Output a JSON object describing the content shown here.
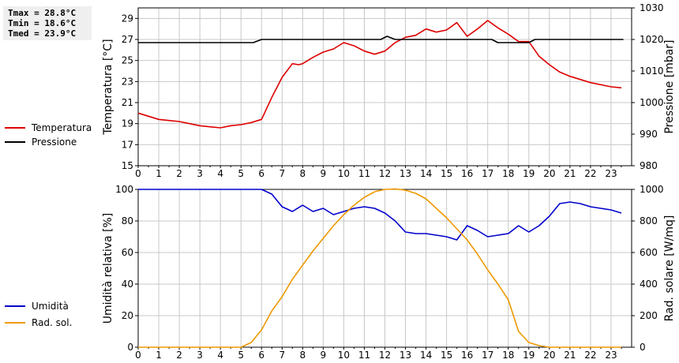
{
  "stats": {
    "tmax": "Tmax = 28.8°C",
    "tmin": "Tmin = 18.6°C",
    "tmed": "Tmed = 23.9°C"
  },
  "colors": {
    "temperature": "#dd0000",
    "pressure": "#000000",
    "humidity": "#0000cc",
    "solar": "#ee9900",
    "grid": "#c8c8c8"
  },
  "legend_top": [
    {
      "label": "Temperatura",
      "color": "#dd0000"
    },
    {
      "label": "Pressione",
      "color": "#000000"
    }
  ],
  "legend_bottom": [
    {
      "label": "Umidità",
      "color": "#0000cc"
    },
    {
      "label": "Rad. sol.",
      "color": "#ee9900"
    }
  ],
  "chart_data": [
    {
      "type": "line",
      "ylabel": "Temperatura [°C]",
      "y2label": "Pressione [mbar]",
      "xlim": [
        0,
        24
      ],
      "ylim": [
        15,
        30
      ],
      "y2lim": [
        980,
        1030
      ],
      "xticks": [
        0,
        1,
        2,
        3,
        4,
        5,
        6,
        7,
        8,
        9,
        10,
        11,
        12,
        13,
        14,
        15,
        16,
        17,
        18,
        19,
        20,
        21,
        22,
        23
      ],
      "yticks": [
        15,
        17,
        19,
        21,
        23,
        25,
        27,
        29
      ],
      "y2ticks": [
        980,
        990,
        1000,
        1010,
        1020,
        1030
      ],
      "grid": true,
      "series": [
        {
          "name": "Temperatura",
          "axis": "left",
          "color": "#dd0000",
          "x": [
            0,
            0.5,
            1,
            1.5,
            2,
            2.5,
            3,
            3.5,
            4,
            4.5,
            5,
            5.5,
            6,
            6.5,
            7,
            7.5,
            7.8,
            8,
            8.5,
            9,
            9.5,
            10,
            10.5,
            11,
            11.5,
            12,
            12.5,
            13,
            13.5,
            14,
            14.5,
            15,
            15.5,
            16,
            16.5,
            17,
            17.5,
            18,
            18.5,
            19,
            19.5,
            20,
            20.5,
            21,
            21.5,
            22,
            22.5,
            23,
            23.5
          ],
          "values": [
            20.0,
            19.7,
            19.4,
            19.3,
            19.2,
            19.0,
            18.8,
            18.7,
            18.6,
            18.8,
            18.9,
            19.1,
            19.4,
            21.5,
            23.4,
            24.7,
            24.6,
            24.7,
            25.3,
            25.8,
            26.1,
            26.7,
            26.4,
            25.9,
            25.6,
            25.9,
            26.7,
            27.2,
            27.4,
            28.0,
            27.7,
            27.9,
            28.6,
            27.3,
            28.0,
            28.8,
            28.1,
            27.5,
            26.8,
            26.8,
            25.4,
            24.6,
            23.9,
            23.5,
            23.2,
            22.9,
            22.7,
            22.5,
            22.4
          ]
        },
        {
          "name": "Pressione",
          "axis": "right",
          "color": "#000000",
          "x": [
            0,
            5.6,
            6,
            11.8,
            12.1,
            12.5,
            17.2,
            17.5,
            19,
            19.3,
            23.6
          ],
          "values": [
            1019,
            1019,
            1020,
            1020,
            1021,
            1020,
            1020,
            1019,
            1019,
            1020,
            1020
          ]
        }
      ]
    },
    {
      "type": "line",
      "ylabel": "Umidità relativa [%]",
      "y2label": "Rad. solare [W/mq]",
      "xlim": [
        0,
        24
      ],
      "ylim": [
        0,
        100
      ],
      "y2lim": [
        0,
        1000
      ],
      "xticks": [
        0,
        1,
        2,
        3,
        4,
        5,
        6,
        7,
        8,
        9,
        10,
        11,
        12,
        13,
        14,
        15,
        16,
        17,
        18,
        19,
        20,
        21,
        22,
        23
      ],
      "yticks": [
        0,
        20,
        40,
        60,
        80,
        100
      ],
      "y2ticks": [
        0,
        200,
        400,
        600,
        800,
        1000
      ],
      "grid": true,
      "series": [
        {
          "name": "Umidità",
          "axis": "left",
          "color": "#0000cc",
          "x": [
            0,
            6,
            6.5,
            7,
            7.5,
            8,
            8.5,
            9,
            9.5,
            10,
            10.5,
            11,
            11.5,
            12,
            12.5,
            13,
            13.5,
            14,
            14.5,
            15,
            15.5,
            16,
            16.5,
            17,
            17.5,
            18,
            18.5,
            19,
            19.5,
            20,
            20.5,
            21,
            21.5,
            22,
            22.5,
            23,
            23.5
          ],
          "values": [
            100,
            100,
            97,
            89,
            86,
            90,
            86,
            88,
            84,
            86,
            88,
            89,
            88,
            85,
            80,
            73,
            72,
            72,
            71,
            70,
            68,
            77,
            74,
            70,
            71,
            72,
            77,
            73,
            77,
            83,
            91,
            92,
            91,
            89,
            88,
            87,
            85
          ]
        },
        {
          "name": "Rad. sol.",
          "axis": "right",
          "color": "#ee9900",
          "x": [
            0,
            5,
            5.5,
            6,
            6.5,
            7,
            7.5,
            8,
            8.5,
            9,
            9.5,
            10,
            10.5,
            11,
            11.5,
            12,
            12.5,
            13,
            13.5,
            14,
            14.5,
            15,
            15.5,
            16,
            16.5,
            17,
            17.5,
            18,
            18.5,
            19,
            19.5,
            20,
            20.5,
            21,
            23.5
          ],
          "values": [
            0,
            0,
            30,
            110,
            230,
            320,
            430,
            520,
            610,
            690,
            770,
            840,
            900,
            950,
            985,
            1000,
            1003,
            995,
            975,
            940,
            880,
            820,
            750,
            680,
            590,
            490,
            400,
            300,
            100,
            30,
            10,
            0,
            0,
            0,
            0
          ]
        }
      ]
    }
  ]
}
